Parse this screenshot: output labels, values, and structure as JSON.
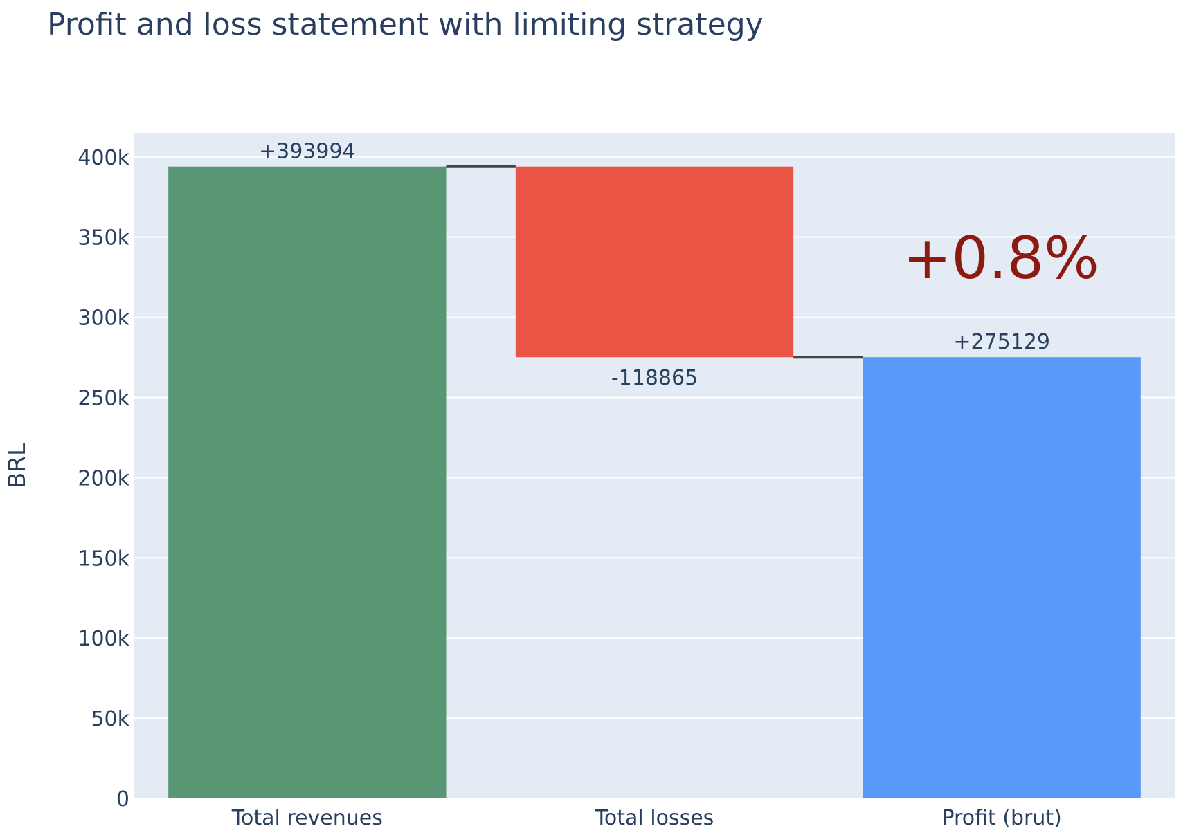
{
  "chart_data": {
    "type": "bar",
    "subtype": "waterfall",
    "title": "Profit and loss statement with limiting strategy",
    "xlabel": "",
    "ylabel": "BRL",
    "ylim": [
      0,
      415000
    ],
    "yticks": [
      0,
      50000,
      100000,
      150000,
      200000,
      250000,
      300000,
      350000,
      400000
    ],
    "ytick_labels": [
      "0",
      "50k",
      "100k",
      "150k",
      "200k",
      "250k",
      "300k",
      "350k",
      "400k"
    ],
    "categories": [
      "Total revenues",
      "Total losses",
      "Profit (brut)"
    ],
    "measures": [
      "relative",
      "relative",
      "total"
    ],
    "values": [
      393994,
      -118865,
      275129
    ],
    "data_labels": [
      "+393994",
      "-118865",
      "+275129"
    ],
    "grid": true,
    "legend": false,
    "annotation": {
      "text": "+0.8%",
      "color": "#8b1a10"
    },
    "colors": {
      "increasing": "#589674",
      "decreasing": "#ea5444",
      "total": "#5899fa",
      "connector": "#444444",
      "plot_background": "#e5ebf5",
      "gridline": "#ffffff",
      "text": "#2a3f5f"
    }
  }
}
